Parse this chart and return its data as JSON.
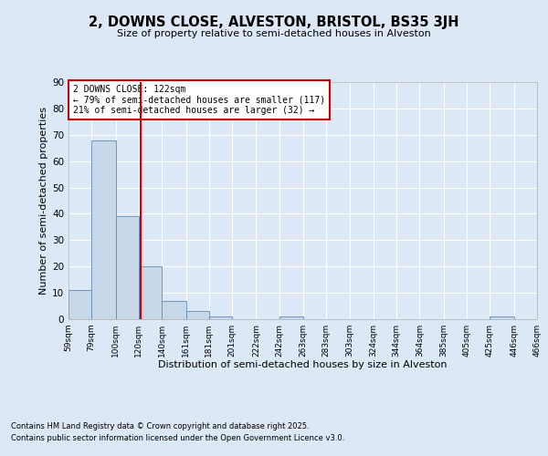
{
  "title_line1": "2, DOWNS CLOSE, ALVESTON, BRISTOL, BS35 3JH",
  "title_line2": "Size of property relative to semi-detached houses in Alveston",
  "xlabel": "Distribution of semi-detached houses by size in Alveston",
  "ylabel": "Number of semi-detached properties",
  "footnote_line1": "Contains HM Land Registry data © Crown copyright and database right 2025.",
  "footnote_line2": "Contains public sector information licensed under the Open Government Licence v3.0.",
  "annotation_line1": "2 DOWNS CLOSE: 122sqm",
  "annotation_line2": "← 79% of semi-detached houses are smaller (117)",
  "annotation_line3": "21% of semi-detached houses are larger (32) →",
  "bar_edges": [
    59,
    79,
    100,
    120,
    140,
    161,
    181,
    201,
    222,
    242,
    263,
    283,
    303,
    324,
    344,
    364,
    385,
    405,
    425,
    446,
    466
  ],
  "bar_heights": [
    11,
    68,
    39,
    20,
    7,
    3,
    1,
    0,
    0,
    1,
    0,
    0,
    0,
    0,
    0,
    0,
    0,
    0,
    1,
    0
  ],
  "bar_color": "#c8d8e8",
  "bar_edge_color": "#5b8db8",
  "vline_x": 122,
  "vline_color": "#cc0000",
  "ylim": [
    0,
    90
  ],
  "yticks": [
    0,
    10,
    20,
    30,
    40,
    50,
    60,
    70,
    80,
    90
  ],
  "bg_color": "#dce8f5",
  "plot_bg_color": "#dce8f5",
  "grid_color": "#ffffff"
}
